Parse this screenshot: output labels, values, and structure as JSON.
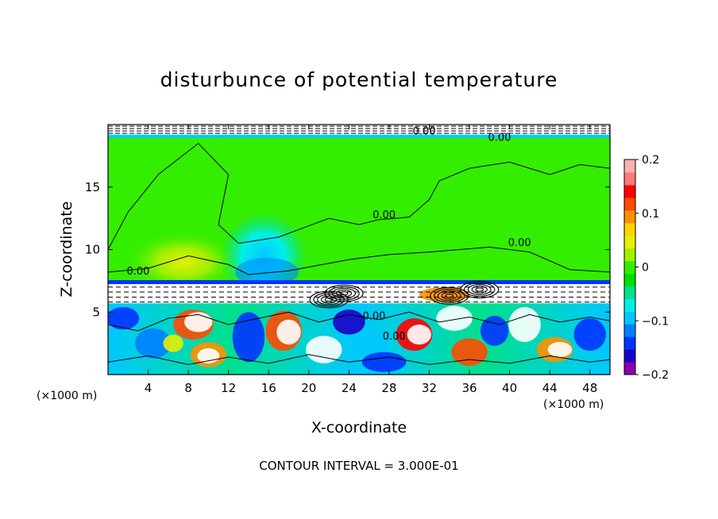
{
  "chart_data": {
    "type": "heatmap",
    "title": "disturbunce of potential temperature",
    "xlabel": "X-coordinate",
    "ylabel": "Z-coordinate",
    "x_unit_label": "(×1000 m)",
    "z_unit_label": "(×1000 m)",
    "footer": "CONTOUR INTERVAL = 3.000E-01",
    "xlim": [
      0,
      50
    ],
    "ylim": [
      0,
      20
    ],
    "x_ticks": [
      4,
      8,
      12,
      16,
      20,
      24,
      28,
      32,
      36,
      40,
      44,
      48
    ],
    "y_ticks": [
      5,
      10,
      15
    ],
    "colorbar": {
      "min": -0.2,
      "max": 0.2,
      "tick_values": [
        0.2,
        0.1,
        0,
        -0.1,
        -0.2
      ],
      "tick_labels": [
        "0.2",
        "0.1",
        "0",
        "−0.1",
        "−0.2"
      ],
      "colors": [
        "#8b00b0",
        "#1a00c8",
        "#0033ff",
        "#0080ff",
        "#00c8ff",
        "#00f0e8",
        "#00e08c",
        "#00e000",
        "#33ee00",
        "#a0f000",
        "#e6f000",
        "#ffd400",
        "#ff9000",
        "#ff4a00",
        "#ff0000",
        "#ff7a7a",
        "#ffb0b0"
      ]
    },
    "contour_labels": [
      {
        "text": "0.00",
        "x": 31.5,
        "z": 19.2
      },
      {
        "text": "0.00",
        "x": 39.0,
        "z": 18.7
      },
      {
        "text": "0.00",
        "x": 27.5,
        "z": 12.5
      },
      {
        "text": "0.00",
        "x": 41.0,
        "z": 10.3
      },
      {
        "text": "0.00",
        "x": 3.0,
        "z": 8.0
      },
      {
        "text": "0.00",
        "x": 26.5,
        "z": 4.4
      },
      {
        "text": "0.00",
        "x": 28.5,
        "z": 2.8
      }
    ],
    "regions": {
      "stratosphere_value": 0.0,
      "tropopause_z": 7.3,
      "upper_cap_z": 19.0,
      "warm_anomaly": {
        "x": 7.5,
        "z": 9.0,
        "value": 0.06
      },
      "cool_anomaly": {
        "x": 15.5,
        "z": 9.5,
        "value": -0.08
      }
    }
  }
}
